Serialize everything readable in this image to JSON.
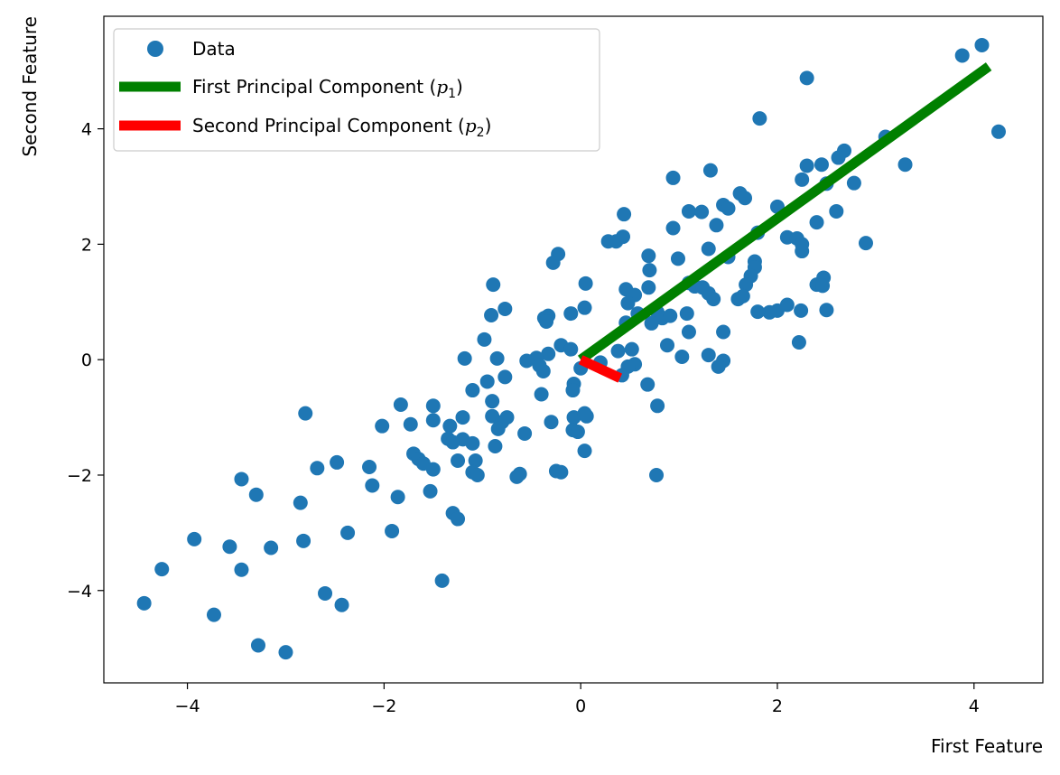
{
  "chart_data": {
    "type": "scatter",
    "xlabel": "First Feature",
    "ylabel": "Second Feature",
    "xlim": [
      -4.85,
      4.7
    ],
    "ylim": [
      -5.6,
      5.95
    ],
    "xticks": [
      -4,
      -2,
      0,
      2,
      4
    ],
    "yticks": [
      -4,
      -2,
      0,
      2,
      4
    ],
    "grid": false,
    "legend_position": "upper-left",
    "colors": {
      "data": "#1f77b4",
      "pc1": "#008000",
      "pc2": "#ff0000"
    },
    "series": [
      {
        "name": "Data",
        "kind": "scatter",
        "points": [
          [
            4.08,
            5.45
          ],
          [
            3.88,
            5.27
          ],
          [
            4.25,
            3.95
          ],
          [
            2.3,
            4.88
          ],
          [
            1.82,
            4.18
          ],
          [
            3.1,
            3.86
          ],
          [
            3.3,
            3.38
          ],
          [
            2.68,
            3.62
          ],
          [
            2.62,
            3.5
          ],
          [
            2.3,
            3.36
          ],
          [
            2.45,
            3.38
          ],
          [
            2.25,
            3.12
          ],
          [
            2.5,
            3.05
          ],
          [
            2.78,
            3.06
          ],
          [
            2.6,
            2.57
          ],
          [
            2.4,
            2.38
          ],
          [
            2.9,
            2.02
          ],
          [
            1.32,
            3.28
          ],
          [
            0.94,
            3.15
          ],
          [
            1.62,
            2.88
          ],
          [
            1.67,
            2.8
          ],
          [
            1.45,
            2.68
          ],
          [
            1.5,
            2.62
          ],
          [
            1.1,
            2.57
          ],
          [
            1.23,
            2.56
          ],
          [
            1.38,
            2.33
          ],
          [
            0.44,
            2.52
          ],
          [
            0.43,
            2.13
          ],
          [
            0.28,
            2.05
          ],
          [
            0.36,
            2.05
          ],
          [
            0.94,
            2.28
          ],
          [
            1.8,
            2.2
          ],
          [
            2.0,
            2.65
          ],
          [
            2.1,
            2.12
          ],
          [
            2.2,
            2.1
          ],
          [
            2.25,
            2.0
          ],
          [
            2.25,
            1.88
          ],
          [
            1.3,
            1.92
          ],
          [
            0.69,
            1.8
          ],
          [
            0.99,
            1.75
          ],
          [
            1.5,
            1.78
          ],
          [
            1.77,
            1.7
          ],
          [
            1.77,
            1.6
          ],
          [
            1.73,
            1.45
          ],
          [
            1.68,
            1.3
          ],
          [
            -0.23,
            1.83
          ],
          [
            -0.28,
            1.68
          ],
          [
            0.7,
            1.55
          ],
          [
            1.1,
            1.33
          ],
          [
            1.16,
            1.27
          ],
          [
            1.24,
            1.25
          ],
          [
            1.3,
            1.15
          ],
          [
            1.35,
            1.05
          ],
          [
            1.6,
            1.05
          ],
          [
            1.65,
            1.1
          ],
          [
            0.46,
            1.22
          ],
          [
            0.55,
            1.12
          ],
          [
            0.48,
            0.98
          ],
          [
            0.69,
            1.25
          ],
          [
            0.05,
            1.32
          ],
          [
            0.78,
            0.82
          ],
          [
            0.83,
            0.72
          ],
          [
            0.91,
            0.76
          ],
          [
            0.72,
            0.63
          ],
          [
            1.08,
            0.8
          ],
          [
            1.1,
            0.48
          ],
          [
            1.45,
            0.48
          ],
          [
            0.88,
            0.25
          ],
          [
            0.46,
            0.64
          ],
          [
            0.58,
            0.8
          ],
          [
            2.4,
            1.3
          ],
          [
            2.47,
            1.42
          ],
          [
            2.46,
            1.28
          ],
          [
            2.1,
            0.95
          ],
          [
            2.0,
            0.85
          ],
          [
            1.92,
            0.82
          ],
          [
            1.8,
            0.83
          ],
          [
            2.24,
            0.85
          ],
          [
            2.5,
            0.86
          ],
          [
            2.22,
            0.3
          ],
          [
            0.04,
            0.9
          ],
          [
            -0.1,
            0.8
          ],
          [
            -0.33,
            0.76
          ],
          [
            -0.37,
            0.72
          ],
          [
            -0.35,
            0.66
          ],
          [
            -0.77,
            0.88
          ],
          [
            -0.91,
            0.77
          ],
          [
            -0.89,
            1.3
          ],
          [
            -0.98,
            0.35
          ],
          [
            -0.2,
            0.25
          ],
          [
            -0.1,
            0.18
          ],
          [
            0.38,
            0.15
          ],
          [
            0.52,
            0.18
          ],
          [
            -0.33,
            0.1
          ],
          [
            -0.45,
            0.03
          ],
          [
            -0.55,
            -0.02
          ],
          [
            -1.18,
            0.02
          ],
          [
            -0.85,
            0.02
          ],
          [
            -0.77,
            -0.3
          ],
          [
            -0.38,
            -0.2
          ],
          [
            -0.42,
            -0.1
          ],
          [
            0.0,
            -0.15
          ],
          [
            0.2,
            -0.05
          ],
          [
            0.55,
            -0.08
          ],
          [
            0.48,
            -0.12
          ],
          [
            0.42,
            -0.27
          ],
          [
            1.03,
            0.05
          ],
          [
            1.3,
            0.08
          ],
          [
            1.45,
            -0.02
          ],
          [
            1.4,
            -0.12
          ],
          [
            0.68,
            -0.43
          ],
          [
            0.78,
            -0.8
          ],
          [
            -0.07,
            -0.42
          ],
          [
            -0.08,
            -0.53
          ],
          [
            -0.4,
            -0.6
          ],
          [
            -1.1,
            -0.53
          ],
          [
            -0.95,
            -0.38
          ],
          [
            -0.9,
            -0.72
          ],
          [
            -1.83,
            -0.78
          ],
          [
            -1.5,
            -0.8
          ],
          [
            -2.8,
            -0.93
          ],
          [
            -0.9,
            -0.98
          ],
          [
            -0.75,
            -1.0
          ],
          [
            -0.8,
            -1.08
          ],
          [
            -0.84,
            -1.2
          ],
          [
            -0.07,
            -1.0
          ],
          [
            0.04,
            -0.93
          ],
          [
            0.06,
            -0.98
          ],
          [
            -0.3,
            -1.08
          ],
          [
            -1.2,
            -1.0
          ],
          [
            -1.5,
            -1.05
          ],
          [
            -1.73,
            -1.12
          ],
          [
            -2.02,
            -1.15
          ],
          [
            -1.33,
            -1.15
          ],
          [
            -0.08,
            -1.22
          ],
          [
            -0.03,
            -1.25
          ],
          [
            -0.57,
            -1.28
          ],
          [
            -1.35,
            -1.37
          ],
          [
            -1.2,
            -1.38
          ],
          [
            -1.1,
            -1.45
          ],
          [
            -1.3,
            -1.43
          ],
          [
            -0.87,
            -1.5
          ],
          [
            0.04,
            -1.58
          ],
          [
            -1.7,
            -1.63
          ],
          [
            -1.65,
            -1.72
          ],
          [
            -1.6,
            -1.8
          ],
          [
            -1.5,
            -1.9
          ],
          [
            -1.25,
            -1.75
          ],
          [
            -1.07,
            -1.75
          ],
          [
            -1.1,
            -1.95
          ],
          [
            -1.05,
            -2.0
          ],
          [
            -0.65,
            -2.03
          ],
          [
            -0.62,
            -1.98
          ],
          [
            -0.25,
            -1.93
          ],
          [
            -0.2,
            -1.95
          ],
          [
            0.77,
            -2.0
          ],
          [
            -2.68,
            -1.88
          ],
          [
            -2.48,
            -1.78
          ],
          [
            -2.15,
            -1.86
          ],
          [
            -2.12,
            -2.18
          ],
          [
            -1.86,
            -2.38
          ],
          [
            -1.53,
            -2.28
          ],
          [
            -3.45,
            -2.07
          ],
          [
            -3.3,
            -2.34
          ],
          [
            -2.85,
            -2.48
          ],
          [
            -1.3,
            -2.66
          ],
          [
            -1.25,
            -2.76
          ],
          [
            -1.92,
            -2.97
          ],
          [
            -2.37,
            -3.0
          ],
          [
            -2.82,
            -3.14
          ],
          [
            -3.93,
            -3.11
          ],
          [
            -3.57,
            -3.24
          ],
          [
            -3.15,
            -3.26
          ],
          [
            -3.45,
            -3.64
          ],
          [
            -4.26,
            -3.63
          ],
          [
            -1.41,
            -3.83
          ],
          [
            -2.6,
            -4.05
          ],
          [
            -2.43,
            -4.25
          ],
          [
            -4.44,
            -4.22
          ],
          [
            -3.73,
            -4.42
          ],
          [
            -3.28,
            -4.95
          ],
          [
            -3.0,
            -5.07
          ]
        ]
      },
      {
        "name": "First Principal Component ($p_1$)",
        "kind": "line",
        "points": [
          [
            0,
            0
          ],
          [
            4.15,
            5.08
          ]
        ]
      },
      {
        "name": "Second Principal Component ($p_2$)",
        "kind": "line",
        "points": [
          [
            0,
            0
          ],
          [
            0.4,
            -0.32
          ]
        ]
      }
    ],
    "legend": {
      "entries": [
        {
          "label": "Data",
          "pre": "Data",
          "var": "",
          "sub": "",
          "post": ""
        },
        {
          "label": "First Principal Component (p1)",
          "pre": "First Principal Component (",
          "var": "p",
          "sub": "1",
          "post": ")"
        },
        {
          "label": "Second Principal Component (p2)",
          "pre": "Second Principal Component (",
          "var": "p",
          "sub": "2",
          "post": ")"
        }
      ]
    }
  }
}
